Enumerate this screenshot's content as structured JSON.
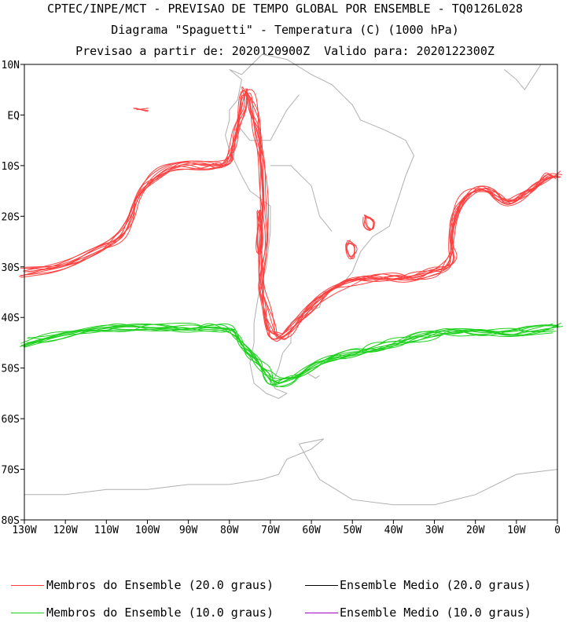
{
  "titles": {
    "line1": "CPTEC/INPE/MCT - PREVISAO DE TEMPO GLOBAL POR ENSEMBLE - TQ0126L028",
    "line2": "Diagrama \"Spaguetti\" - Temperatura (C) (1000 hPa)",
    "line3": "Previsao a partir de: 2020120900Z  Valido para: 2020122300Z"
  },
  "axes": {
    "y_ticks": [
      "10N",
      "EQ",
      "10S",
      "20S",
      "30S",
      "40S",
      "50S",
      "60S",
      "70S",
      "80S"
    ],
    "x_ticks": [
      "130W",
      "120W",
      "110W",
      "100W",
      "90W",
      "80W",
      "70W",
      "60W",
      "50W",
      "40W",
      "30W",
      "20W",
      "10W",
      "0"
    ],
    "lon_range": [
      -130,
      0
    ],
    "lat_range": [
      -80,
      10
    ]
  },
  "legend": [
    {
      "label": "Membros do Ensemble (20.0 graus)",
      "color": "#ff4040"
    },
    {
      "label": "Ensemble Medio (20.0 graus)",
      "color": "#000000"
    },
    {
      "label": "Membros do Ensemble (10.0 graus)",
      "color": "#20d020"
    },
    {
      "label": "Ensemble Medio (10.0 graus)",
      "color": "#a000c0"
    }
  ],
  "colors": {
    "member_20": "#ff4040",
    "member_10": "#20d020",
    "coastline": "#b0b0b0",
    "frame": "#000000"
  },
  "chart_data": {
    "type": "line",
    "projection": "lat-lon",
    "xlabel": "",
    "ylabel": "",
    "xlim": [
      -130,
      0
    ],
    "ylim": [
      -80,
      10
    ],
    "grid": false,
    "legend_position": "bottom",
    "series": [
      {
        "name": "Membros do Ensemble (20.0 graus)",
        "color": "#ff4040",
        "members": 10,
        "lon": [
          -130,
          -120,
          -112,
          -107,
          -104,
          -102,
          -97,
          -92,
          -86,
          -82,
          -80,
          -79,
          -78,
          -76.5,
          -76,
          -75,
          -74,
          -73,
          -72,
          -71.5,
          -71.5,
          -72,
          -71,
          -70,
          -69,
          -67,
          -65,
          -60,
          -55,
          -50,
          -45,
          -40,
          -35,
          -30,
          -27,
          -25,
          -25.5,
          -25,
          -22,
          -17,
          -15,
          -12,
          -8,
          -5,
          -2,
          0
        ],
        "lat": [
          -31,
          -30,
          -27,
          -25,
          -21,
          -15,
          -11,
          -10,
          -10,
          -10,
          -9,
          -7,
          -3,
          2,
          5,
          4,
          0,
          -3,
          -8,
          -15,
          -25,
          -33,
          -38,
          -42,
          -44,
          -44,
          -42,
          -38,
          -35,
          -33,
          -32,
          -32,
          -32,
          -31,
          -30,
          -28,
          -25,
          -20,
          -15,
          -14,
          -16,
          -18,
          -16,
          -14,
          -12,
          -12
        ]
      },
      {
        "name": "Membros do Ensemble (10.0 graus)",
        "color": "#20d020",
        "members": 10,
        "lon": [
          -130,
          -125,
          -120,
          -112,
          -105,
          -98,
          -90,
          -85,
          -81,
          -79,
          -77,
          -75,
          -73,
          -71,
          -69,
          -66,
          -63,
          -59,
          -55,
          -50,
          -45,
          -40,
          -35,
          -30,
          -25,
          -18,
          -12,
          -6,
          0
        ],
        "lat": [
          -45,
          -44,
          -43,
          -42,
          -42,
          -42,
          -42,
          -42,
          -42,
          -43,
          -45,
          -47,
          -49,
          -51,
          -53,
          -52.5,
          -51,
          -49.5,
          -48,
          -47,
          -46,
          -45,
          -44,
          -43.5,
          -43,
          -43,
          -43,
          -42.5,
          -42
        ]
      }
    ],
    "secondary_contours_20": [
      {
        "name": "",
        "lon": [
          -73,
          -72.5,
          -72,
          -72.2,
          -73,
          -73.4,
          -73.1,
          -73
        ],
        "lat": [
          -19,
          -21,
          -24,
          -27,
          -27.5,
          -25,
          -21,
          -19
        ]
      },
      {
        "name": "",
        "lon": [
          -51,
          -49.5,
          -49,
          -50,
          -51,
          -51.6,
          -51
        ],
        "lat": [
          -25,
          -25.5,
          -27,
          -28.5,
          -27.5,
          -26,
          -25
        ]
      },
      {
        "name": "",
        "lon": [
          -47,
          -45,
          -44.5,
          -45.5,
          -47,
          -47
        ],
        "lat": [
          -20,
          -20.5,
          -22,
          -23,
          -22,
          -20
        ]
      },
      {
        "name": "",
        "lon": [
          -103,
          -100
        ],
        "lat": [
          1,
          1
        ]
      }
    ]
  }
}
